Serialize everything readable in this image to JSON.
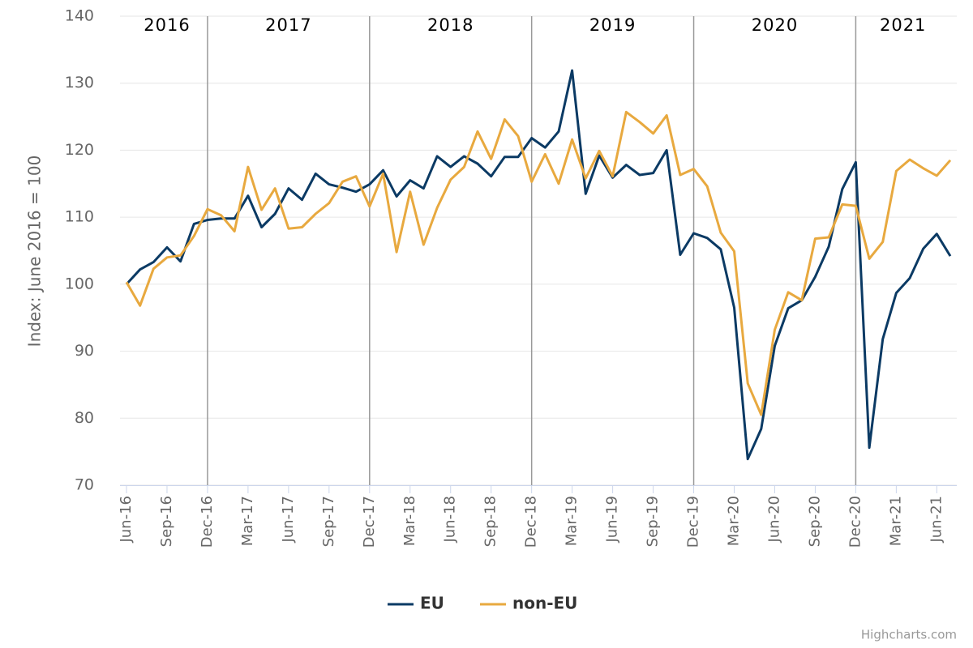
{
  "chart_data": {
    "type": "line",
    "y_label": "Index: June 2016 = 100",
    "categories": [
      "Jun-16",
      null,
      null,
      "Sep-16",
      null,
      null,
      "Dec-16",
      null,
      null,
      "Mar-17",
      null,
      null,
      "Jun-17",
      null,
      null,
      "Sep-17",
      null,
      null,
      "Dec-17",
      null,
      null,
      "Mar-18",
      null,
      null,
      "Jun-18",
      null,
      null,
      "Sep-18",
      null,
      null,
      "Dec-18",
      null,
      null,
      "Mar-19",
      null,
      null,
      "Jun-19",
      null,
      null,
      "Sep-19",
      null,
      null,
      "Dec-19",
      null,
      null,
      "Mar-20",
      null,
      null,
      "Jun-20",
      null,
      null,
      "Sep-20",
      null,
      null,
      "Dec-20",
      null,
      null,
      "Mar-21",
      null,
      null,
      "Jun-21",
      null
    ],
    "series": [
      {
        "name": "EU",
        "color": "#0b3a64",
        "values": [
          100,
          102.2,
          103.3,
          105.5,
          103.4,
          109,
          109.6,
          109.8,
          109.8,
          113.2,
          108.5,
          110.5,
          114.3,
          112.6,
          116.5,
          114.9,
          114.4,
          113.8,
          114.9,
          117,
          113.1,
          115.5,
          114.3,
          119.1,
          117.5,
          119.1,
          118,
          116.1,
          119,
          119,
          121.8,
          120.4,
          122.8,
          131.9,
          113.5,
          119.2,
          115.9,
          117.8,
          116.3,
          116.6,
          120,
          104.4,
          107.6,
          106.9,
          105.2,
          96.5,
          73.9,
          78.4,
          90.8,
          96.4,
          97.6,
          101.1,
          105.6,
          114.2,
          118.2,
          75.6,
          91.8,
          98.7,
          100.9,
          105.3,
          107.5,
          104.2
        ]
      },
      {
        "name": "non-EU",
        "color": "#e8a93f",
        "values": [
          100.3,
          96.8,
          102.3,
          104,
          104.3,
          107.2,
          111.2,
          110.3,
          107.9,
          117.5,
          111.1,
          114.3,
          108.3,
          108.5,
          110.5,
          112.1,
          115.3,
          116.1,
          111.6,
          116.5,
          104.8,
          113.8,
          105.9,
          111.4,
          115.6,
          117.5,
          122.8,
          118.7,
          124.6,
          122.1,
          115.3,
          119.4,
          115,
          121.6,
          115.8,
          119.9,
          116.1,
          125.7,
          124.2,
          122.5,
          125.2,
          116.3,
          117.2,
          114.6,
          107.7,
          104.9,
          85.2,
          80.5,
          93.2,
          98.8,
          97.6,
          106.8,
          107,
          111.9,
          111.7,
          103.8,
          106.3,
          116.9,
          118.6,
          117.3,
          116.2,
          118.5
        ]
      }
    ],
    "year_labels": [
      "2016",
      "2017",
      "2018",
      "2019",
      "2020",
      "2021"
    ],
    "year_dividers": [
      "Dec-16",
      "Dec-17",
      "Dec-18",
      "Dec-19",
      "Dec-20"
    ],
    "ylim": [
      70,
      140
    ],
    "yticks": [
      70,
      80,
      90,
      100,
      110,
      120,
      130,
      140
    ],
    "grid": true,
    "legend": "bottom",
    "credits": "Highcharts.com"
  }
}
